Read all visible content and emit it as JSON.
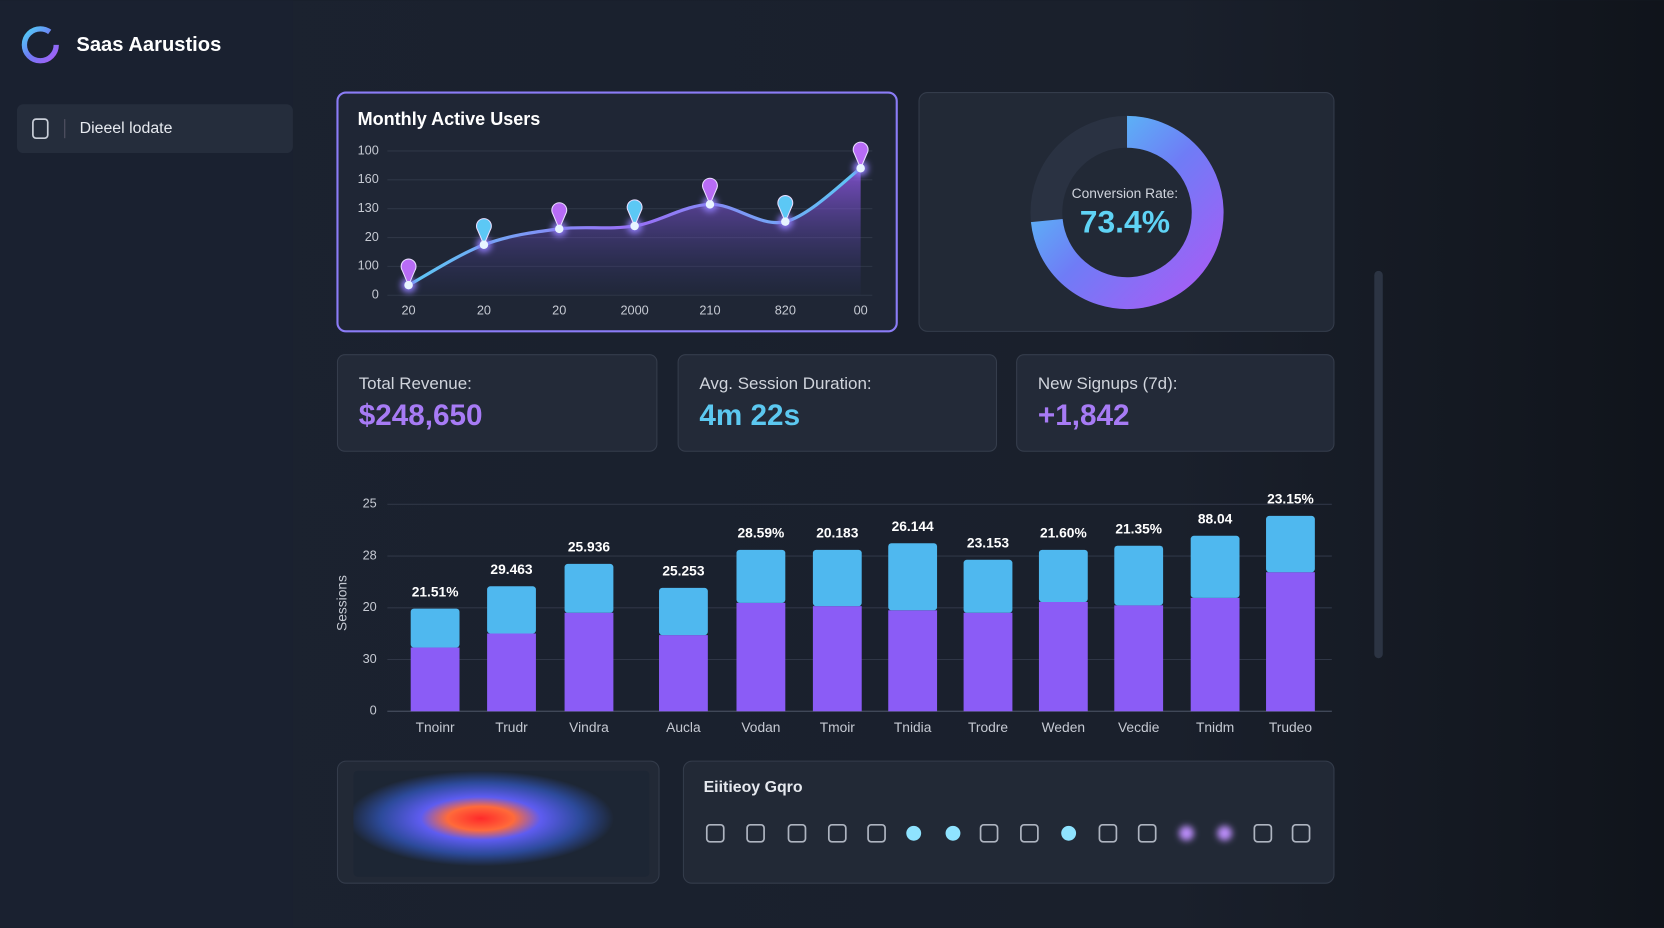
{
  "sidebar": {
    "brand": "Saas Aarustios",
    "nav": [
      "Dieeel lodate"
    ]
  },
  "chart_data": [
    {
      "type": "line",
      "title": "Monthly Active Users",
      "categories": [
        "20",
        "20",
        "20",
        "2000",
        "210",
        "820",
        "00"
      ],
      "values": [
        7,
        35,
        46,
        48,
        63,
        51,
        88
      ],
      "color": "#8f7cf8",
      "ylim": [
        0,
        100
      ],
      "yticks": [
        0,
        {
          "value": 20,
          "label": "100"
        },
        {
          "value": 40,
          "label": "20"
        },
        {
          "value": 60,
          "label": "130"
        },
        {
          "value": 80,
          "label": "160"
        },
        100
      ],
      "grid": true
    },
    {
      "type": "bar",
      "y_label": "Sessions",
      "categories": [
        "Tnoinr",
        "Trudr",
        "Vindra",
        "Aucla",
        "Vodan",
        "Tmoir",
        "Tnidia",
        "Trodre",
        "Weden",
        "Vecdie",
        "Tnidm",
        "Trudeo"
      ],
      "series": [
        {
          "color": "#8b5cf6",
          "values": [
            7.7,
            9.4,
            11.9,
            9.2,
            13.1,
            12.7,
            12.2,
            11.9,
            13.2,
            12.8,
            13.7,
            16.8
          ]
        },
        {
          "color": "#4fb8ef",
          "values": [
            4.7,
            5.7,
            5.9,
            5.7,
            6.4,
            6.8,
            8.1,
            6.4,
            6.3,
            7.2,
            7.5,
            6.8
          ]
        }
      ],
      "annotations": [
        "21.51%",
        "29.463",
        "25.936",
        "25.253",
        "28.59%",
        "20.183",
        "26.144",
        "23.153",
        "21.60%",
        "21.35%",
        "88.04",
        "23.15%"
      ],
      "ylim": [
        0,
        25
      ],
      "yticks": [
        0,
        {
          "value": 6.25,
          "label": "30"
        },
        {
          "value": 12.5,
          "label": "20"
        },
        {
          "value": 18.75,
          "label": "28"
        },
        25
      ],
      "grid": true
    }
  ],
  "donut": {
    "label": "Conversion Rate:",
    "value": 73.4,
    "value_label": "73.4%"
  },
  "kpis": [
    {
      "label": "Total Revenue:",
      "value": "$248,650"
    },
    {
      "label": "Avg. Session Duration:",
      "value": "4m 22s"
    },
    {
      "label": "New Signups (7d):",
      "value": "+1,842"
    }
  ],
  "toolbar": {
    "title": "Eiitieoy Gqro"
  }
}
